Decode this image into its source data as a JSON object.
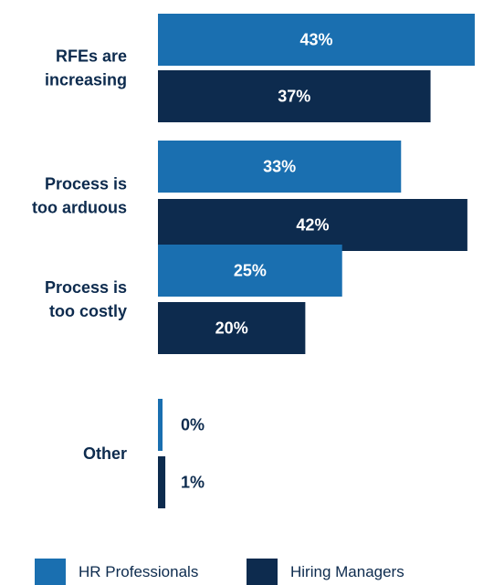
{
  "chart_data": {
    "type": "bar",
    "orientation": "horizontal",
    "categories": [
      [
        "RFEs are",
        "increasing"
      ],
      [
        "Process is",
        "too arduous"
      ],
      [
        "Process is",
        "too costly"
      ],
      [
        "Other"
      ]
    ],
    "series": [
      {
        "name": "HR Professionals",
        "color": "#1a6fb0",
        "values": [
          43,
          33,
          25,
          0
        ],
        "labels": [
          "43%",
          "33%",
          "25%",
          "0%"
        ]
      },
      {
        "name": "Hiring Managers",
        "color": "#0d2b4e",
        "values": [
          37,
          42,
          20,
          1
        ],
        "labels": [
          "37%",
          "42%",
          "20%",
          "1%"
        ]
      }
    ],
    "xlim": [
      0,
      43.5
    ],
    "grid": false,
    "legend_position": "bottom",
    "label_color_inside": "#ffffff",
    "label_color_outside": "#0d2b4e"
  }
}
